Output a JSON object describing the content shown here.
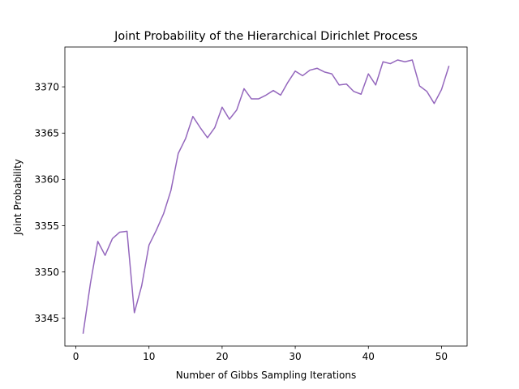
{
  "chart_data": {
    "type": "line",
    "title": "Joint Probability of the Hierarchical Dirichlet Process",
    "xlabel": "Number of Gibbs Sampling Iterations",
    "ylabel": "Joint Probability",
    "xlim": [
      -1.5,
      53.5
    ],
    "ylim": [
      3342.0,
      3374.3
    ],
    "xticks": [
      0,
      10,
      20,
      30,
      40,
      50
    ],
    "yticks": [
      3345,
      3350,
      3355,
      3360,
      3365,
      3370
    ],
    "grid": false,
    "legend": "none",
    "series": [
      {
        "color": "#9467bd",
        "x": [
          1,
          2,
          3,
          4,
          5,
          6,
          7,
          8,
          9,
          10,
          11,
          12,
          13,
          14,
          15,
          16,
          17,
          18,
          19,
          20,
          21,
          22,
          23,
          24,
          25,
          26,
          27,
          28,
          29,
          30,
          31,
          32,
          33,
          34,
          35,
          36,
          37,
          38,
          39,
          40,
          41,
          42,
          43,
          44,
          45,
          46,
          47,
          48,
          49,
          50,
          51
        ],
        "y": [
          3343.4,
          3348.8,
          3353.3,
          3351.8,
          3353.6,
          3354.3,
          3354.4,
          3345.6,
          3348.5,
          3352.9,
          3354.5,
          3356.3,
          3358.8,
          3362.8,
          3364.4,
          3366.8,
          3365.6,
          3364.5,
          3365.6,
          3367.8,
          3366.5,
          3367.5,
          3369.8,
          3368.7,
          3368.7,
          3369.1,
          3369.6,
          3369.1,
          3370.5,
          3371.7,
          3371.2,
          3371.8,
          3372.0,
          3371.6,
          3371.4,
          3370.2,
          3370.3,
          3369.5,
          3369.2,
          3371.4,
          3370.2,
          3372.7,
          3372.5,
          3372.9,
          3372.7,
          3372.9,
          3370.1,
          3369.5,
          3368.2,
          3369.7,
          3372.2
        ]
      }
    ]
  }
}
